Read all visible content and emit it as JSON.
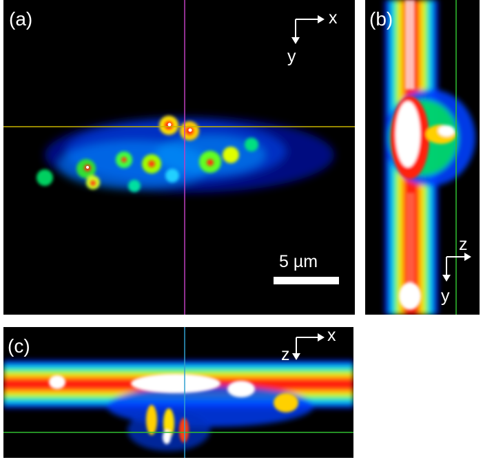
{
  "panels": {
    "a": {
      "label": "(a)",
      "axis_x": "x",
      "axis_y": "y",
      "scale_label": "5 µm"
    },
    "b": {
      "label": "(b)",
      "axis_z": "z",
      "axis_y": "y"
    },
    "c": {
      "label": "(c)",
      "axis_x": "x",
      "axis_z": "z"
    }
  },
  "colors": {
    "crosshair_yellow": "#c8b400",
    "crosshair_magenta": "#c040c0",
    "crosshair_green": "#30c030",
    "crosshair_cyan": "#30a0d0",
    "heat_low": "#0000c0",
    "heat_mid": "#00d000",
    "heat_high": "#ff2000",
    "heat_peak": "#ffffff"
  }
}
